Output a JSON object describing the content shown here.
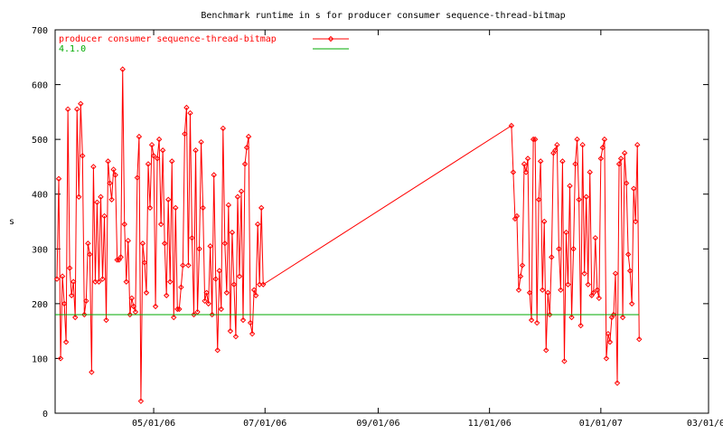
{
  "chart_data": {
    "type": "line",
    "title": "Benchmark runtime in s for producer consumer sequence-thread-bitmap",
    "ylabel": "s",
    "xlabel": "",
    "ylim": [
      0,
      700
    ],
    "xlim": [
      "2006-03-08",
      "2007-03-01"
    ],
    "yticks": [
      "0",
      "100",
      "200",
      "300",
      "400",
      "500",
      "600",
      "700"
    ],
    "xticks": [
      {
        "label": "05/01/06",
        "date": "2006-05-01"
      },
      {
        "label": "07/01/06",
        "date": "2006-07-01"
      },
      {
        "label": "09/01/06",
        "date": "2006-09-01"
      },
      {
        "label": "11/01/06",
        "date": "2006-11-01"
      },
      {
        "label": "01/01/07",
        "date": "2007-01-01"
      },
      {
        "label": "03/01/07",
        "date": "2007-03-01"
      }
    ],
    "legend_position": "top-left",
    "grid": false,
    "series": [
      {
        "name": "producer consumer sequence-thread-bitmap",
        "color": "#ff0000",
        "marker": "diamond",
        "points": [
          [
            "2006-03-09",
            245
          ],
          [
            "2006-03-10",
            428
          ],
          [
            "2006-03-11",
            100
          ],
          [
            "2006-03-12",
            250
          ],
          [
            "2006-03-13",
            200
          ],
          [
            "2006-03-14",
            130
          ],
          [
            "2006-03-15",
            555
          ],
          [
            "2006-03-16",
            265
          ],
          [
            "2006-03-17",
            215
          ],
          [
            "2006-03-18",
            240
          ],
          [
            "2006-03-19",
            175
          ],
          [
            "2006-03-20",
            555
          ],
          [
            "2006-03-21",
            395
          ],
          [
            "2006-03-22",
            565
          ],
          [
            "2006-03-23",
            470
          ],
          [
            "2006-03-24",
            180
          ],
          [
            "2006-03-25",
            205
          ],
          [
            "2006-03-26",
            310
          ],
          [
            "2006-03-27",
            290
          ],
          [
            "2006-03-28",
            75
          ],
          [
            "2006-03-29",
            450
          ],
          [
            "2006-03-30",
            240
          ],
          [
            "2006-03-31",
            385
          ],
          [
            "2006-04-01",
            240
          ],
          [
            "2006-04-02",
            395
          ],
          [
            "2006-04-03",
            245
          ],
          [
            "2006-04-04",
            360
          ],
          [
            "2006-04-05",
            170
          ],
          [
            "2006-04-06",
            460
          ],
          [
            "2006-04-07",
            420
          ],
          [
            "2006-04-08",
            390
          ],
          [
            "2006-04-09",
            445
          ],
          [
            "2006-04-10",
            435
          ],
          [
            "2006-04-11",
            280
          ],
          [
            "2006-04-12",
            280
          ],
          [
            "2006-04-13",
            285
          ],
          [
            "2006-04-14",
            628
          ],
          [
            "2006-04-15",
            345
          ],
          [
            "2006-04-16",
            240
          ],
          [
            "2006-04-17",
            315
          ],
          [
            "2006-04-18",
            180
          ],
          [
            "2006-04-19",
            210
          ],
          [
            "2006-04-20",
            195
          ],
          [
            "2006-04-21",
            185
          ],
          [
            "2006-04-22",
            430
          ],
          [
            "2006-04-23",
            505
          ],
          [
            "2006-04-24",
            22
          ],
          [
            "2006-04-25",
            310
          ],
          [
            "2006-04-26",
            275
          ],
          [
            "2006-04-27",
            220
          ],
          [
            "2006-04-28",
            455
          ],
          [
            "2006-04-29",
            375
          ],
          [
            "2006-04-30",
            490
          ],
          [
            "2006-05-01",
            470
          ],
          [
            "2006-05-02",
            195
          ],
          [
            "2006-05-03",
            465
          ],
          [
            "2006-05-04",
            500
          ],
          [
            "2006-05-05",
            345
          ],
          [
            "2006-05-06",
            480
          ],
          [
            "2006-05-07",
            310
          ],
          [
            "2006-05-08",
            215
          ],
          [
            "2006-05-09",
            390
          ],
          [
            "2006-05-10",
            240
          ],
          [
            "2006-05-11",
            460
          ],
          [
            "2006-05-12",
            175
          ],
          [
            "2006-05-13",
            375
          ],
          [
            "2006-05-14",
            190
          ],
          [
            "2006-05-15",
            190
          ],
          [
            "2006-05-16",
            230
          ],
          [
            "2006-05-17",
            270
          ],
          [
            "2006-05-18",
            510
          ],
          [
            "2006-05-19",
            558
          ],
          [
            "2006-05-20",
            270
          ],
          [
            "2006-05-21",
            548
          ],
          [
            "2006-05-22",
            320
          ],
          [
            "2006-05-23",
            180
          ],
          [
            "2006-05-24",
            480
          ],
          [
            "2006-05-25",
            185
          ],
          [
            "2006-05-26",
            300
          ],
          [
            "2006-05-27",
            495
          ],
          [
            "2006-05-28",
            375
          ],
          [
            "2006-05-29",
            205
          ],
          [
            "2006-05-30",
            220
          ],
          [
            "2006-05-31",
            200
          ],
          [
            "2006-06-01",
            305
          ],
          [
            "2006-06-02",
            180
          ],
          [
            "2006-06-03",
            435
          ],
          [
            "2006-06-04",
            245
          ],
          [
            "2006-06-05",
            115
          ],
          [
            "2006-06-06",
            260
          ],
          [
            "2006-06-07",
            190
          ],
          [
            "2006-06-08",
            520
          ],
          [
            "2006-06-09",
            310
          ],
          [
            "2006-06-10",
            220
          ],
          [
            "2006-06-11",
            380
          ],
          [
            "2006-06-12",
            150
          ],
          [
            "2006-06-13",
            330
          ],
          [
            "2006-06-14",
            235
          ],
          [
            "2006-06-15",
            140
          ],
          [
            "2006-06-16",
            395
          ],
          [
            "2006-06-17",
            250
          ],
          [
            "2006-06-18",
            405
          ],
          [
            "2006-06-19",
            170
          ],
          [
            "2006-06-20",
            455
          ],
          [
            "2006-06-21",
            485
          ],
          [
            "2006-06-22",
            505
          ],
          [
            "2006-06-23",
            165
          ],
          [
            "2006-06-24",
            145
          ],
          [
            "2006-06-25",
            225
          ],
          [
            "2006-06-26",
            215
          ],
          [
            "2006-06-27",
            345
          ],
          [
            "2006-06-28",
            235
          ],
          [
            "2006-06-29",
            375
          ],
          [
            "2006-06-30",
            235
          ],
          [
            "2006-11-13",
            525
          ],
          [
            "2006-11-14",
            440
          ],
          [
            "2006-11-15",
            355
          ],
          [
            "2006-11-16",
            360
          ],
          [
            "2006-11-17",
            225
          ],
          [
            "2006-11-18",
            250
          ],
          [
            "2006-11-19",
            270
          ],
          [
            "2006-11-20",
            455
          ],
          [
            "2006-11-21",
            440
          ],
          [
            "2006-11-22",
            465
          ],
          [
            "2006-11-23",
            220
          ],
          [
            "2006-11-24",
            170
          ],
          [
            "2006-11-25",
            500
          ],
          [
            "2006-11-26",
            500
          ],
          [
            "2006-11-27",
            165
          ],
          [
            "2006-11-28",
            390
          ],
          [
            "2006-11-29",
            460
          ],
          [
            "2006-11-30",
            225
          ],
          [
            "2006-12-01",
            350
          ],
          [
            "2006-12-02",
            115
          ],
          [
            "2006-12-03",
            220
          ],
          [
            "2006-12-04",
            180
          ],
          [
            "2006-12-05",
            285
          ],
          [
            "2006-12-06",
            475
          ],
          [
            "2006-12-07",
            480
          ],
          [
            "2006-12-08",
            490
          ],
          [
            "2006-12-09",
            300
          ],
          [
            "2006-12-10",
            225
          ],
          [
            "2006-12-11",
            460
          ],
          [
            "2006-12-12",
            95
          ],
          [
            "2006-12-13",
            330
          ],
          [
            "2006-12-14",
            235
          ],
          [
            "2006-12-15",
            415
          ],
          [
            "2006-12-16",
            175
          ],
          [
            "2006-12-17",
            300
          ],
          [
            "2006-12-18",
            455
          ],
          [
            "2006-12-19",
            500
          ],
          [
            "2006-12-20",
            390
          ],
          [
            "2006-12-21",
            160
          ],
          [
            "2006-12-22",
            490
          ],
          [
            "2006-12-23",
            255
          ],
          [
            "2006-12-24",
            395
          ],
          [
            "2006-12-25",
            235
          ],
          [
            "2006-12-26",
            440
          ],
          [
            "2006-12-27",
            215
          ],
          [
            "2006-12-28",
            220
          ],
          [
            "2006-12-29",
            320
          ],
          [
            "2006-12-30",
            225
          ],
          [
            "2006-12-31",
            210
          ],
          [
            "2007-01-01",
            465
          ],
          [
            "2007-01-02",
            485
          ],
          [
            "2007-01-03",
            500
          ],
          [
            "2007-01-04",
            100
          ],
          [
            "2007-01-05",
            145
          ],
          [
            "2007-01-06",
            130
          ],
          [
            "2007-01-07",
            175
          ],
          [
            "2007-01-08",
            180
          ],
          [
            "2007-01-09",
            255
          ],
          [
            "2007-01-10",
            55
          ],
          [
            "2007-01-11",
            455
          ],
          [
            "2007-01-12",
            465
          ],
          [
            "2007-01-13",
            175
          ],
          [
            "2007-01-14",
            475
          ],
          [
            "2007-01-15",
            420
          ],
          [
            "2007-01-16",
            290
          ],
          [
            "2007-01-17",
            260
          ],
          [
            "2007-01-18",
            200
          ],
          [
            "2007-01-19",
            410
          ],
          [
            "2007-01-20",
            350
          ],
          [
            "2007-01-21",
            490
          ],
          [
            "2007-01-22",
            135
          ]
        ]
      },
      {
        "name": "4.1.0",
        "color": "#00aa00",
        "marker": "none",
        "points": [
          [
            "2006-03-08",
            180
          ],
          [
            "2007-01-22",
            180
          ]
        ]
      }
    ]
  }
}
